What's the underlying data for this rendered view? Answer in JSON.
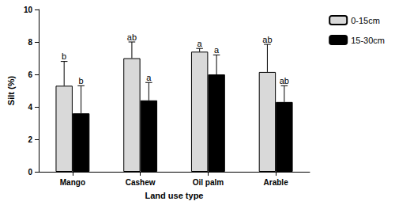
{
  "chart_data": {
    "type": "bar",
    "x_label": "Land use type",
    "y_label": "Silt (%)",
    "categories": [
      "Mango",
      "Cashew",
      "Oil palm",
      "Arable"
    ],
    "series": [
      {
        "name": "0-15cm",
        "color": "#d9d9d9",
        "values": [
          5.3,
          7.0,
          7.4,
          6.15
        ],
        "errors": [
          1.5,
          1.0,
          0.2,
          1.7
        ],
        "annotations": [
          "b",
          "ab",
          "a",
          "ab"
        ]
      },
      {
        "name": "15-30cm",
        "color": "#000000",
        "values": [
          3.6,
          4.4,
          6.0,
          4.3
        ],
        "errors": [
          1.7,
          1.1,
          1.2,
          1.0
        ],
        "annotations": [
          "b",
          "a",
          "a",
          "ab"
        ]
      }
    ],
    "ylim": [
      0,
      10
    ],
    "yticks": [
      0,
      2,
      4,
      6,
      8,
      10
    ],
    "grid": false,
    "legend": "upper right"
  }
}
